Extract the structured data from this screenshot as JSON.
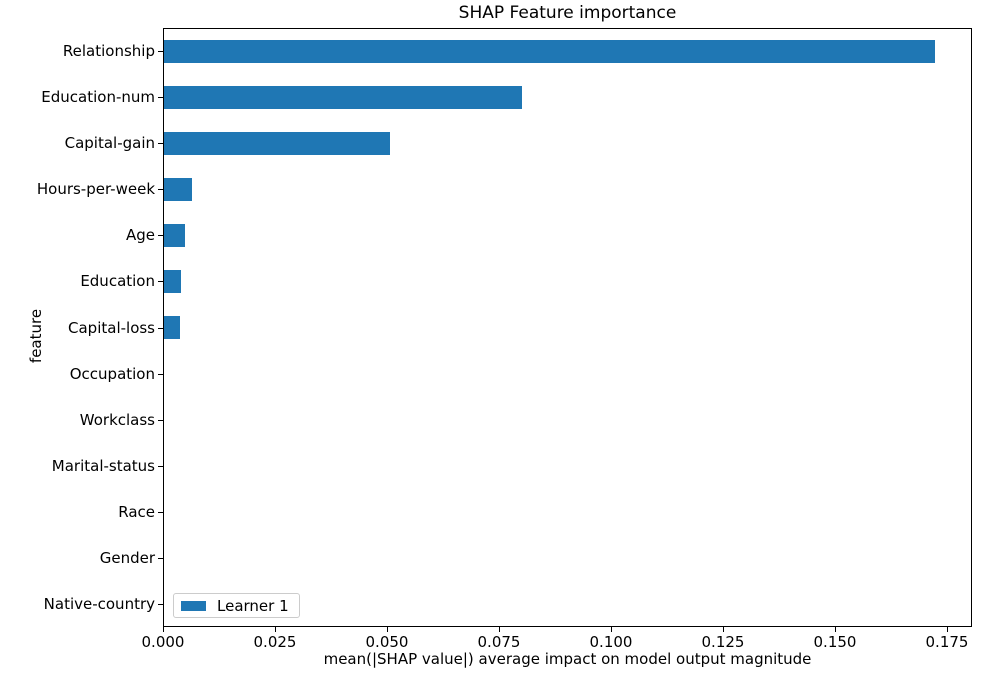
{
  "figure": {
    "background": "#ffffff"
  },
  "chart_data": {
    "type": "bar",
    "orientation": "horizontal",
    "title": "SHAP Feature importance",
    "xlabel": "mean(|SHAP value|) average impact on model output magnitude",
    "ylabel": "feature",
    "categories": [
      "Relationship",
      "Education-num",
      "Capital-gain",
      "Hours-per-week",
      "Age",
      "Education",
      "Capital-loss",
      "Occupation",
      "Workclass",
      "Marital-status",
      "Race",
      "Gender",
      "Native-country"
    ],
    "values": [
      0.1721,
      0.0799,
      0.0505,
      0.0063,
      0.0046,
      0.0037,
      0.0035,
      0.0,
      0.0,
      0.0,
      0.0,
      0.0,
      0.0
    ],
    "xlim": [
      0,
      0.1806
    ],
    "grid": false,
    "bar_color": "#1f77b4",
    "xticks": {
      "values": [
        0.0,
        0.025,
        0.05,
        0.075,
        0.1,
        0.125,
        0.15,
        0.175
      ],
      "labels": [
        "0.000",
        "0.025",
        "0.050",
        "0.075",
        "0.100",
        "0.125",
        "0.150",
        "0.175"
      ]
    },
    "legend": {
      "position": "lower left",
      "entries": [
        {
          "label": "Learner 1",
          "color": "#1f77b4"
        }
      ]
    }
  }
}
